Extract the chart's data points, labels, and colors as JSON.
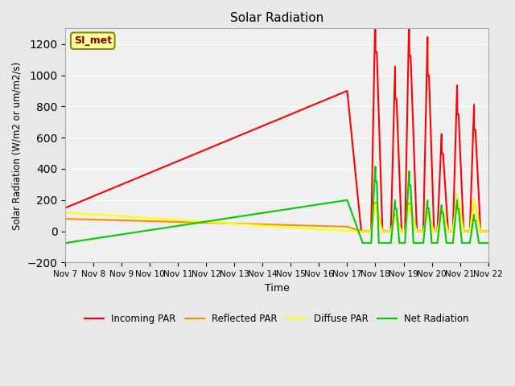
{
  "title": "Solar Radiation",
  "ylabel": "Solar Radiation (W/m2 or um/m2/s)",
  "xlabel": "Time",
  "ylim": [
    -200,
    1300
  ],
  "xlim": [
    0,
    15
  ],
  "label_box_text": "SI_met",
  "tick_labels": [
    "Nov 7",
    "Nov 8",
    "Nov 9",
    "Nov 10",
    "Nov 11",
    "Nov 12",
    "Nov 13",
    "Nov 14",
    "Nov 15",
    "Nov 16",
    "Nov 17",
    "Nov 18",
    "Nov 19",
    "Nov 20",
    "Nov 21",
    "Nov 22"
  ],
  "yticks": [
    -200,
    0,
    200,
    400,
    600,
    800,
    1000,
    1200
  ],
  "background_color": "#e8e8e8",
  "axes_bg": "#f0f0f0",
  "grid_color": "#ffffff",
  "series": {
    "incoming_par": {
      "label": "Incoming PAR",
      "color": "#ff0000",
      "linewidth": 1.5
    },
    "reflected_par": {
      "label": "Reflected PAR",
      "color": "#ff8c00",
      "linewidth": 1.5
    },
    "diffuse_par": {
      "label": "Diffuse PAR",
      "color": "#ffff00",
      "linewidth": 1.5
    },
    "net_radiation": {
      "label": "Net Radiation",
      "color": "#00cc00",
      "linewidth": 1.5
    }
  }
}
